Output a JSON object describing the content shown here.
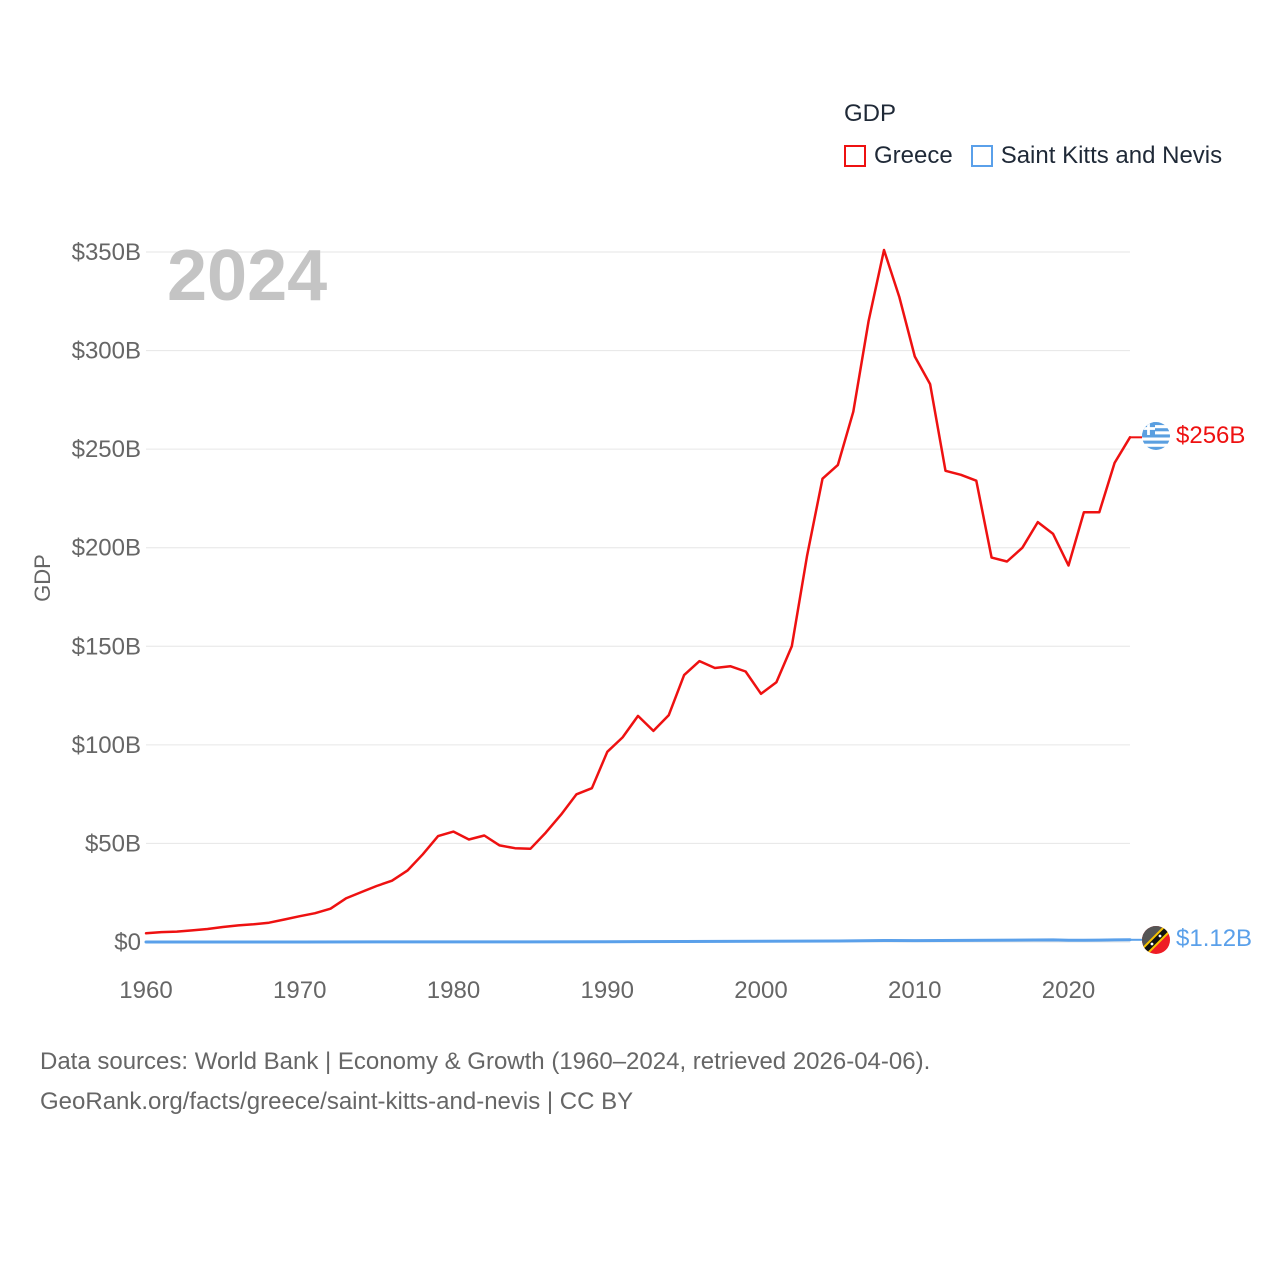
{
  "legend": {
    "title": "GDP",
    "items": [
      {
        "label": "Greece",
        "color": "#ee1111"
      },
      {
        "label": "Saint Kitts and Nevis",
        "color": "#5aa0ea"
      }
    ]
  },
  "year_label": "2024",
  "end_labels": {
    "greece": "$256B",
    "skn": "$1.12B"
  },
  "source": {
    "line1": "Data sources: World Bank | Economy & Growth (1960–2024, retrieved 2026-04-06).",
    "line2": "GeoRank.org/facts/greece/saint-kitts-and-nevis | CC BY"
  },
  "chart_data": {
    "type": "line",
    "title": "GDP",
    "xlabel": "",
    "ylabel": "GDP",
    "xlim": [
      1960,
      2024
    ],
    "ylim": [
      0,
      350
    ],
    "y_unit": "billion USD",
    "x_ticks": [
      1960,
      1970,
      1980,
      1990,
      2000,
      2010,
      2020
    ],
    "y_ticks": [
      0,
      50,
      100,
      150,
      200,
      250,
      300,
      350
    ],
    "y_tick_labels": [
      "$0",
      "$50B",
      "$100B",
      "$150B",
      "$200B",
      "$250B",
      "$300B",
      "$350B"
    ],
    "grid": true,
    "series": [
      {
        "name": "Greece",
        "color": "#ee1111",
        "x": [
          1960,
          1961,
          1962,
          1963,
          1964,
          1965,
          1966,
          1967,
          1968,
          1969,
          1970,
          1971,
          1972,
          1973,
          1974,
          1975,
          1976,
          1977,
          1978,
          1979,
          1980,
          1981,
          1982,
          1983,
          1984,
          1985,
          1986,
          1987,
          1988,
          1989,
          1990,
          1991,
          1992,
          1993,
          1994,
          1995,
          1996,
          1997,
          1998,
          1999,
          2000,
          2001,
          2002,
          2003,
          2004,
          2005,
          2006,
          2007,
          2008,
          2009,
          2010,
          2011,
          2012,
          2013,
          2014,
          2015,
          2016,
          2017,
          2018,
          2019,
          2020,
          2021,
          2022,
          2023,
          2024
        ],
        "values": [
          4.4,
          5.0,
          5.3,
          5.9,
          6.6,
          7.6,
          8.4,
          9.0,
          9.8,
          11.4,
          13.1,
          14.6,
          16.9,
          22.1,
          25.3,
          28.4,
          31.1,
          36.2,
          44.5,
          53.7,
          56.0,
          52.0,
          54.0,
          49.0,
          47.6,
          47.3,
          55.5,
          64.6,
          74.9,
          78.0,
          96.5,
          103.8,
          114.7,
          107.1,
          115.1,
          135.4,
          142.5,
          139.0,
          139.9,
          137.2,
          125.9,
          131.8,
          150.0,
          196.0,
          235.0,
          242.0,
          269.0,
          315.0,
          351.0,
          327.0,
          297.0,
          283.0,
          239.0,
          237.0,
          234.0,
          195.0,
          193.0,
          200.0,
          213.0,
          207.0,
          191.0,
          218.0,
          218.0,
          243.0,
          256.0
        ]
      },
      {
        "name": "Saint Kitts and Nevis",
        "color": "#5aa0ea",
        "x": [
          1960,
          1965,
          1970,
          1975,
          1980,
          1985,
          1990,
          1995,
          2000,
          2005,
          2008,
          2010,
          2015,
          2019,
          2020,
          2021,
          2022,
          2023,
          2024
        ],
        "values": [
          0.01,
          0.01,
          0.02,
          0.03,
          0.05,
          0.07,
          0.16,
          0.25,
          0.38,
          0.5,
          0.76,
          0.71,
          0.92,
          1.05,
          0.88,
          0.86,
          0.98,
          1.05,
          1.12
        ]
      }
    ]
  }
}
